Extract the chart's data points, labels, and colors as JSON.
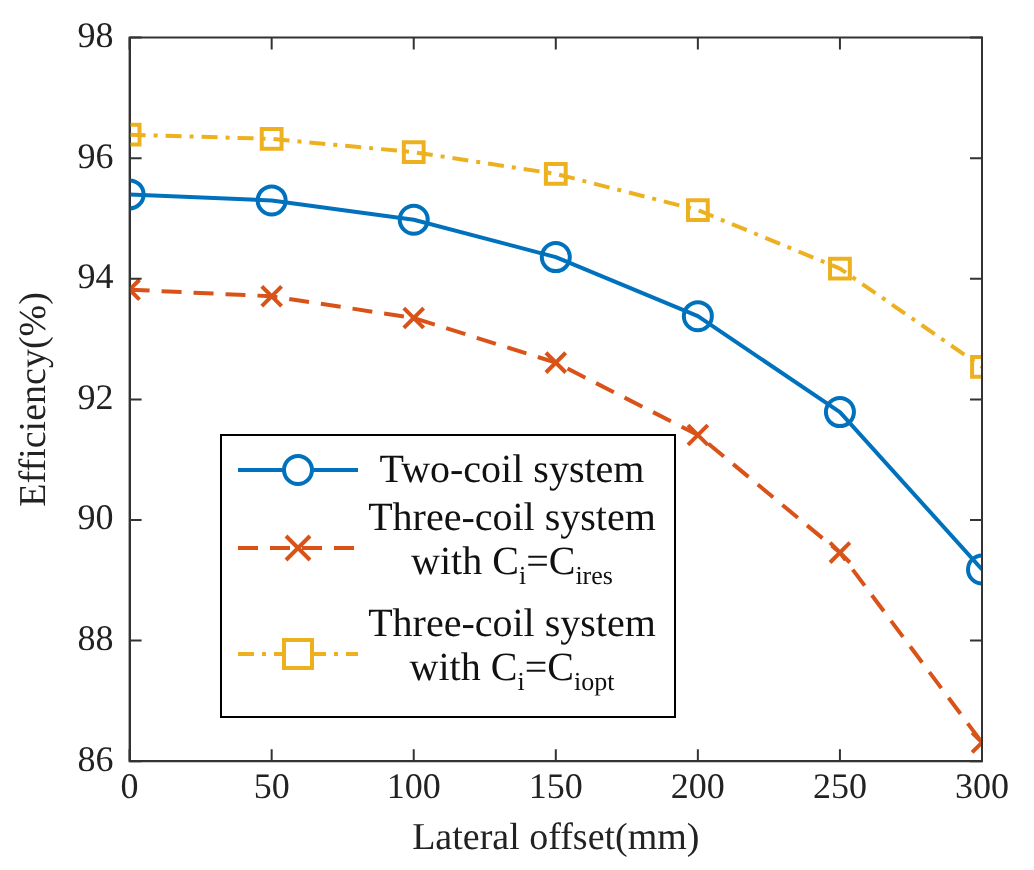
{
  "chart_data": {
    "type": "line",
    "xlabel": "Lateral offset(mm)",
    "ylabel": "Efficiency(%)",
    "x": [
      0,
      50,
      100,
      150,
      200,
      250,
      300
    ],
    "xlim": [
      0,
      300
    ],
    "xticks": [
      0,
      50,
      100,
      150,
      200,
      250,
      300
    ],
    "ylim": [
      86,
      98
    ],
    "yticks": [
      86,
      88,
      90,
      92,
      94,
      96,
      98
    ],
    "grid": false,
    "legend": "bottom left",
    "series": [
      {
        "name": "Two-coil system",
        "color": "#0072bd",
        "marker": "circle",
        "line_style": "solid",
        "values": [
          95.4,
          95.3,
          94.98,
          94.36,
          93.38,
          91.79,
          89.18
        ]
      },
      {
        "name": "Three-coil system with C$_{i}$=C$_{ires}$",
        "color": "#d95319",
        "marker": "cross",
        "line_style": "dashed",
        "values": [
          93.82,
          93.71,
          93.35,
          92.61,
          91.41,
          89.46,
          86.31
        ]
      },
      {
        "name": "Three-coil system with C$_{i}$=C$_{iopt}$",
        "color": "#edb120",
        "marker": "square",
        "line_style": "dashdot",
        "values": [
          96.39,
          96.32,
          96.1,
          95.74,
          95.14,
          94.17,
          92.54
        ]
      }
    ]
  }
}
